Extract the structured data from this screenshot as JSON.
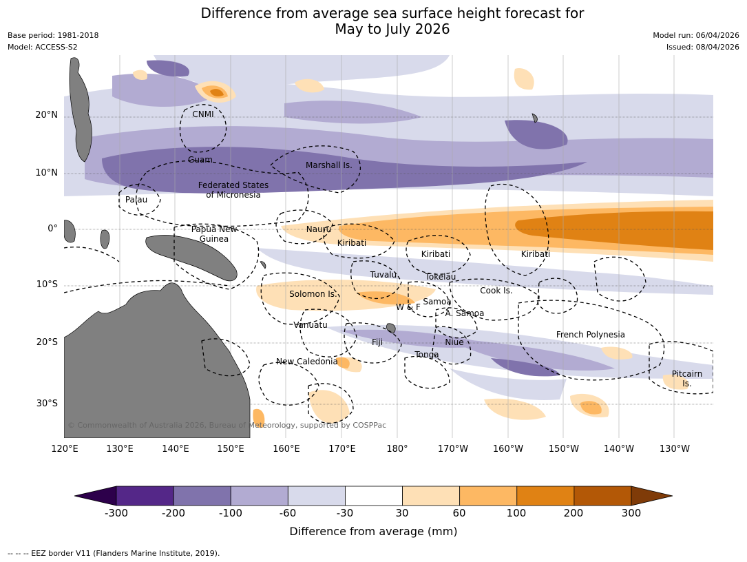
{
  "title": {
    "line1": "Difference from average sea surface height forecast for",
    "line2": "May to July 2026"
  },
  "meta": {
    "base_period": "Base period: 1981-2018",
    "model": "Model: ACCESS-S2",
    "model_run": "Model run: 06/04/2026",
    "issued": "Issued: 08/04/2026"
  },
  "map": {
    "latitude_labels": [
      "20°N",
      "10°N",
      "0°",
      "10°S",
      "20°S",
      "30°S"
    ],
    "longitude_labels": [
      "120°E",
      "130°E",
      "140°E",
      "150°E",
      "160°E",
      "170°E",
      "180°",
      "170°W",
      "160°W",
      "150°W",
      "140°W",
      "130°W"
    ],
    "regions": {
      "cnmi": "CNMI",
      "guam": "Guam",
      "marshall": "Marshall Is.",
      "fsm_1": "Federated States",
      "fsm_2": "of Micronesia",
      "palau": "Palau",
      "png_1": "Papua New",
      "png_2": "Guinea",
      "nauru": "Nauru",
      "kiribati_w": "Kiribati",
      "kiribati_c": "Kiribati",
      "kiribati_e": "Kiribati",
      "tuvalu": "Tuvalu",
      "tokelau": "Tokelau",
      "solomon": "Solomon Is.",
      "wf": "W & F",
      "samoa": "Samoa",
      "am_samoa": "A. Samoa",
      "cook": "Cook Is.",
      "vanuatu": "Vanuatu",
      "fiji": "Fiji",
      "niue": "Niue",
      "french_polynesia": "French Polynesia",
      "tonga": "Tonga",
      "new_caledonia": "New Caledonia",
      "pitcairn_1": "Pitcairn",
      "pitcairn_2": "Is."
    },
    "copyright": "© Commonwealth of Australia 2026, Bureau of Meteorology, supported by COSPPac"
  },
  "colorbar": {
    "tick_labels": [
      "-300",
      "-200",
      "-100",
      "-60",
      "-30",
      "30",
      "60",
      "100",
      "200",
      "300"
    ],
    "colors": [
      "#2d004b",
      "#542788",
      "#8073ac",
      "#b2abd2",
      "#d8daeb",
      "#ffffff",
      "#fee0b6",
      "#fdb863",
      "#e08214",
      "#b35806",
      "#7f3b08"
    ],
    "title": "Difference from average (mm)"
  },
  "footnote": "--  --  -- EEZ border V11 (Flanders Marine Institute, 2019)."
}
